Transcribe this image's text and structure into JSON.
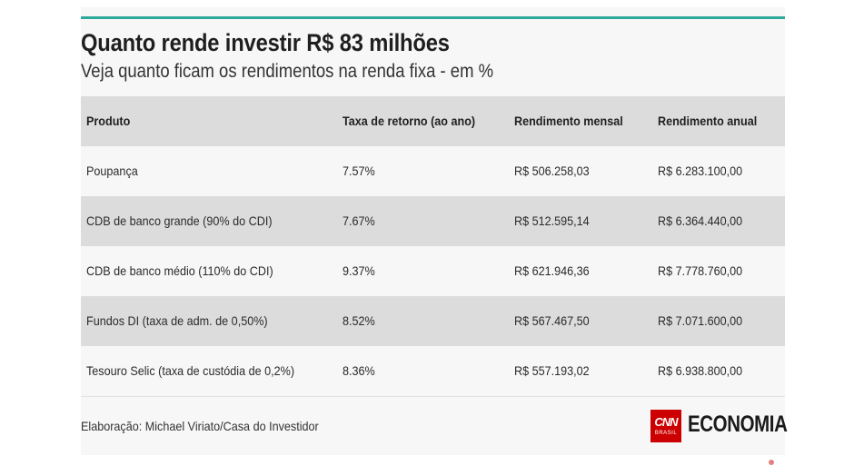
{
  "title": "Quanto rende investir R$ 83 milhões",
  "subtitle": "Veja quanto ficam os rendimentos na renda fixa - em %",
  "colors": {
    "accent_bar": "#2ea89a",
    "row_shade": "#dcdcdc",
    "card_bg": "#f7f7f7",
    "brand_red": "#cc0000"
  },
  "chart_data": {
    "type": "table",
    "title": "Quanto rende investir R$ 83 milhões",
    "subtitle": "Veja quanto ficam os rendimentos na renda fixa - em %",
    "columns": [
      "Produto",
      "Taxa de retorno (ao ano)",
      "Rendimento mensal",
      "Rendimento anual"
    ],
    "rows": [
      [
        "Poupança",
        "7.57%",
        "R$ 506.258,03",
        "R$ 6.283.100,00"
      ],
      [
        "CDB de banco grande (90% do CDI)",
        "7.67%",
        "R$ 512.595,14",
        "R$ 6.364.440,00"
      ],
      [
        "CDB de banco médio (110% do CDI)",
        "9.37%",
        "R$ 621.946,36",
        "R$ 7.778.760,00"
      ],
      [
        "Fundos DI (taxa de adm. de 0,50%)",
        "8.52%",
        "R$ 567.467,50",
        "R$ 7.071.600,00"
      ],
      [
        "Tesouro Selic (taxa de custódia de 0,2%)",
        "8.36%",
        "R$ 557.193,02",
        "R$ 6.938.800,00"
      ]
    ]
  },
  "footer": {
    "credit": "Elaboração: Michael Viriato/Casa do Investidor"
  },
  "logo": {
    "cnn": "CNN",
    "cnn_sub": "BRASIL",
    "economia": "ECONOMIA"
  }
}
